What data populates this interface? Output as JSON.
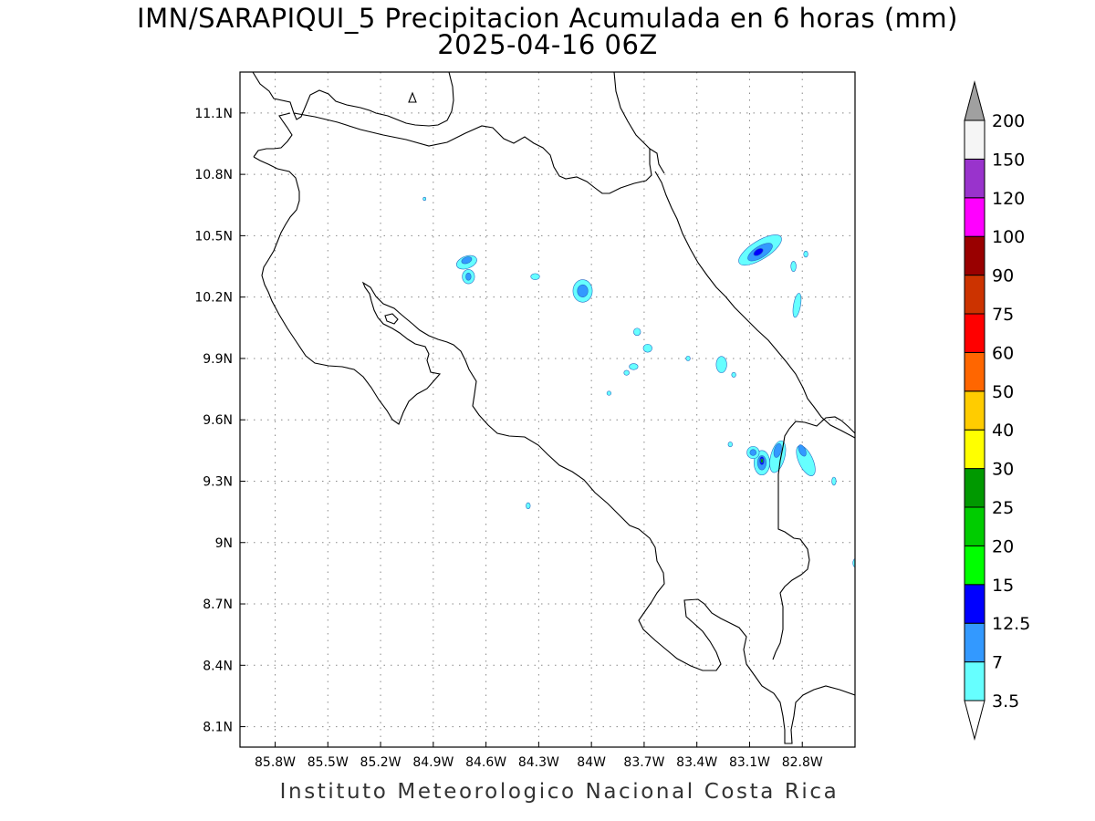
{
  "title": {
    "line1": "IMN/SARAPIQUI_5 Precipitacion Acumulada en 6 horas (mm)",
    "line2": "2025-04-16 06Z"
  },
  "footer": "Instituto Meteorologico Nacional Costa Rica",
  "map": {
    "lon_range": [
      -86.0,
      -82.5
    ],
    "lat_range": [
      8.0,
      11.3
    ],
    "lon_ticks": [
      {
        "value": -85.8,
        "label": "85.8W"
      },
      {
        "value": -85.5,
        "label": "85.5W"
      },
      {
        "value": -85.2,
        "label": "85.2W"
      },
      {
        "value": -84.9,
        "label": "84.9W"
      },
      {
        "value": -84.6,
        "label": "84.6W"
      },
      {
        "value": -84.3,
        "label": "84.3W"
      },
      {
        "value": -84.0,
        "label": "84W"
      },
      {
        "value": -83.7,
        "label": "83.7W"
      },
      {
        "value": -83.4,
        "label": "83.4W"
      },
      {
        "value": -83.1,
        "label": "83.1W"
      },
      {
        "value": -82.8,
        "label": "82.8W"
      }
    ],
    "lat_ticks": [
      {
        "value": 8.1,
        "label": "8.1N"
      },
      {
        "value": 8.4,
        "label": "8.4N"
      },
      {
        "value": 8.7,
        "label": "8.7N"
      },
      {
        "value": 9.0,
        "label": "9N"
      },
      {
        "value": 9.3,
        "label": "9.3N"
      },
      {
        "value": 9.6,
        "label": "9.6N"
      },
      {
        "value": 9.9,
        "label": "9.9N"
      },
      {
        "value": 10.2,
        "label": "10.2N"
      },
      {
        "value": 10.5,
        "label": "10.5N"
      },
      {
        "value": 10.8,
        "label": "10.8N"
      },
      {
        "value": 11.1,
        "label": "11.1N"
      }
    ],
    "grid": true,
    "coastline_color": "#000000"
  },
  "legend": {
    "under_color": "#ffffff",
    "over_color": "#a0a0a0",
    "bins": [
      {
        "label": "3.5",
        "color": "#66ffff"
      },
      {
        "label": "7",
        "color": "#3399ff"
      },
      {
        "label": "12.5",
        "color": "#0000ff"
      },
      {
        "label": "15",
        "color": "#00ff00"
      },
      {
        "label": "20",
        "color": "#00cc00"
      },
      {
        "label": "25",
        "color": "#009900"
      },
      {
        "label": "30",
        "color": "#ffff00"
      },
      {
        "label": "40",
        "color": "#ffcc00"
      },
      {
        "label": "50",
        "color": "#ff6600"
      },
      {
        "label": "60",
        "color": "#ff0000"
      },
      {
        "label": "75",
        "color": "#cc3300"
      },
      {
        "label": "90",
        "color": "#990000"
      },
      {
        "label": "100",
        "color": "#ff00ff"
      },
      {
        "label": "120",
        "color": "#9933cc"
      },
      {
        "label": "150",
        "color": "#f5f5f5"
      },
      {
        "label": "200",
        "color": ""
      }
    ]
  },
  "precip_cells": [
    {
      "lon": -84.71,
      "lat": 10.37,
      "rx": 0.06,
      "ry": 0.03,
      "level": 0,
      "rot": -20
    },
    {
      "lon": -84.71,
      "lat": 10.38,
      "rx": 0.03,
      "ry": 0.015,
      "level": 1,
      "rot": -20
    },
    {
      "lon": -84.7,
      "lat": 10.3,
      "rx": 0.035,
      "ry": 0.035,
      "level": 0,
      "rot": 0
    },
    {
      "lon": -84.7,
      "lat": 10.3,
      "rx": 0.015,
      "ry": 0.018,
      "level": 1,
      "rot": 0
    },
    {
      "lon": -84.32,
      "lat": 10.3,
      "rx": 0.025,
      "ry": 0.015,
      "level": 0,
      "rot": 0
    },
    {
      "lon": -84.05,
      "lat": 10.23,
      "rx": 0.055,
      "ry": 0.055,
      "level": 0,
      "rot": 0
    },
    {
      "lon": -84.05,
      "lat": 10.23,
      "rx": 0.03,
      "ry": 0.03,
      "level": 1,
      "rot": 0
    },
    {
      "lon": -83.04,
      "lat": 10.43,
      "rx": 0.14,
      "ry": 0.045,
      "level": 0,
      "rot": -32
    },
    {
      "lon": -83.04,
      "lat": 10.42,
      "rx": 0.08,
      "ry": 0.028,
      "level": 1,
      "rot": -32
    },
    {
      "lon": -83.05,
      "lat": 10.42,
      "rx": 0.03,
      "ry": 0.014,
      "level": 2,
      "rot": -32
    },
    {
      "lon": -82.85,
      "lat": 10.35,
      "rx": 0.015,
      "ry": 0.025,
      "level": 0,
      "rot": 0
    },
    {
      "lon": -82.78,
      "lat": 10.41,
      "rx": 0.012,
      "ry": 0.015,
      "level": 0,
      "rot": 0
    },
    {
      "lon": -82.83,
      "lat": 10.16,
      "rx": 0.02,
      "ry": 0.06,
      "level": 0,
      "rot": 10
    },
    {
      "lon": -83.74,
      "lat": 10.03,
      "rx": 0.02,
      "ry": 0.018,
      "level": 0,
      "rot": 0
    },
    {
      "lon": -83.68,
      "lat": 9.95,
      "rx": 0.025,
      "ry": 0.02,
      "level": 0,
      "rot": 0
    },
    {
      "lon": -83.76,
      "lat": 9.86,
      "rx": 0.025,
      "ry": 0.015,
      "level": 0,
      "rot": 0
    },
    {
      "lon": -83.8,
      "lat": 9.83,
      "rx": 0.015,
      "ry": 0.012,
      "level": 0,
      "rot": 0
    },
    {
      "lon": -83.26,
      "lat": 9.87,
      "rx": 0.03,
      "ry": 0.04,
      "level": 0,
      "rot": 0
    },
    {
      "lon": -83.19,
      "lat": 9.82,
      "rx": 0.012,
      "ry": 0.012,
      "level": 0,
      "rot": 0
    },
    {
      "lon": -83.45,
      "lat": 9.9,
      "rx": 0.012,
      "ry": 0.012,
      "level": 0,
      "rot": 0
    },
    {
      "lon": -83.9,
      "lat": 9.73,
      "rx": 0.012,
      "ry": 0.01,
      "level": 0,
      "rot": 0
    },
    {
      "lon": -83.03,
      "lat": 9.39,
      "rx": 0.045,
      "ry": 0.06,
      "level": 0,
      "rot": 0
    },
    {
      "lon": -83.03,
      "lat": 9.39,
      "rx": 0.025,
      "ry": 0.035,
      "level": 1,
      "rot": 0
    },
    {
      "lon": -83.03,
      "lat": 9.4,
      "rx": 0.013,
      "ry": 0.02,
      "level": 2,
      "rot": 0
    },
    {
      "lon": -83.03,
      "lat": 9.4,
      "rx": 0.007,
      "ry": 0.01,
      "level": 5,
      "rot": 0
    },
    {
      "lon": -83.08,
      "lat": 9.44,
      "rx": 0.035,
      "ry": 0.03,
      "level": 0,
      "rot": 0
    },
    {
      "lon": -83.08,
      "lat": 9.44,
      "rx": 0.018,
      "ry": 0.015,
      "level": 1,
      "rot": 0
    },
    {
      "lon": -82.94,
      "lat": 9.42,
      "rx": 0.04,
      "ry": 0.08,
      "level": 0,
      "rot": 15
    },
    {
      "lon": -82.94,
      "lat": 9.45,
      "rx": 0.02,
      "ry": 0.035,
      "level": 1,
      "rot": 15
    },
    {
      "lon": -82.78,
      "lat": 9.4,
      "rx": 0.04,
      "ry": 0.08,
      "level": 0,
      "rot": -25
    },
    {
      "lon": -82.8,
      "lat": 9.45,
      "rx": 0.018,
      "ry": 0.03,
      "level": 1,
      "rot": -25
    },
    {
      "lon": -82.62,
      "lat": 9.3,
      "rx": 0.012,
      "ry": 0.02,
      "level": 0,
      "rot": 0
    },
    {
      "lon": -83.21,
      "lat": 9.48,
      "rx": 0.012,
      "ry": 0.012,
      "level": 0,
      "rot": 0
    },
    {
      "lon": -84.36,
      "lat": 9.18,
      "rx": 0.012,
      "ry": 0.015,
      "level": 0,
      "rot": 0
    },
    {
      "lon": -84.95,
      "lat": 10.68,
      "rx": 0.008,
      "ry": 0.008,
      "level": 0,
      "rot": 0
    },
    {
      "lon": -82.5,
      "lat": 8.9,
      "rx": 0.012,
      "ry": 0.02,
      "level": 0,
      "rot": 0
    }
  ]
}
